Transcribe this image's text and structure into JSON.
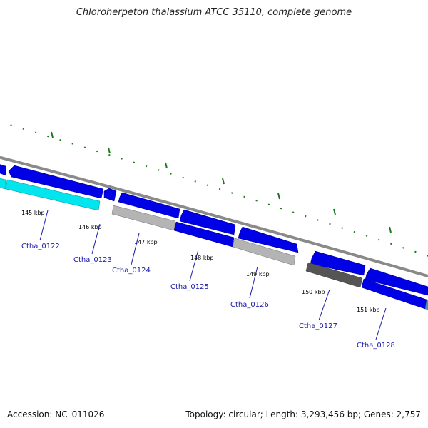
{
  "title": "Chloroherpeton thalassium ATCC 35110, complete genome",
  "footer": {
    "accession": "Accession: NC_011026",
    "summary": "Topology: circular; Length: 3,293,456 bp; Genes: 2,757"
  },
  "colors": {
    "backbone": "#8a8a8a",
    "gene_forward": "#0000e6",
    "gene_reverse": "#0000e6",
    "gene_cyan": "#00e5ee",
    "gene_gray": "#b4b4b4",
    "gene_dark": "#555555",
    "ticks": "#1a7a1a",
    "label_line": "#1a1aa6"
  },
  "scale_labels": [
    "145 kbp",
    "146 kbp",
    "147 kbp",
    "148 kbp",
    "149 kbp",
    "150 kbp",
    "151 kbp"
  ],
  "gene_labels": [
    "Ctha_0122",
    "Ctha_0123",
    "Ctha_0124",
    "Ctha_0125",
    "Ctha_0126",
    "Ctha_0127",
    "Ctha_0128"
  ]
}
